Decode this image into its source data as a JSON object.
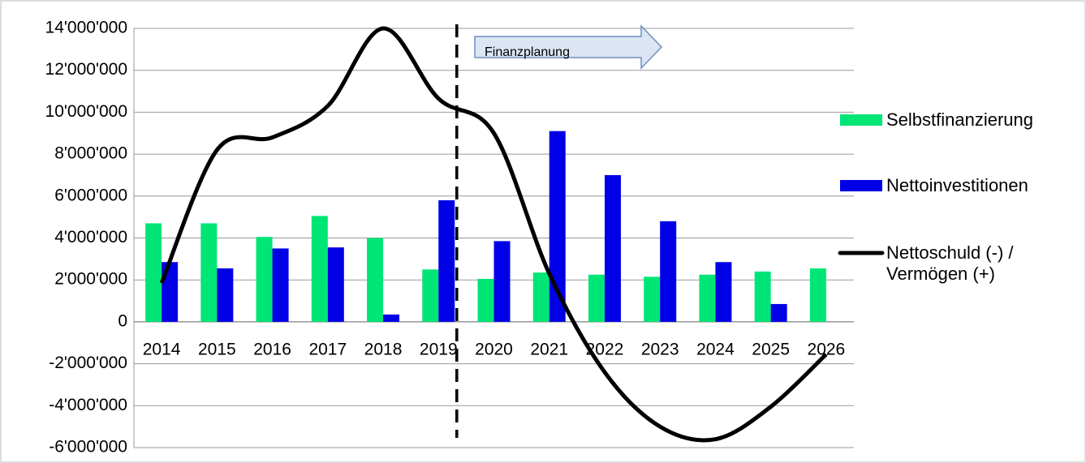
{
  "chart_data": {
    "type": "bar-line",
    "annotation": "Finanzplanung",
    "categories": [
      "2014",
      "2015",
      "2016",
      "2017",
      "2018",
      "2019",
      "2020",
      "2021",
      "2022",
      "2023",
      "2024",
      "2025",
      "2026"
    ],
    "series": [
      {
        "name": "Selbstfinanzierung",
        "type": "bar",
        "color": "#00e676",
        "values": [
          4700000,
          4700000,
          4050000,
          5050000,
          4000000,
          2500000,
          2050000,
          2350000,
          2250000,
          2150000,
          2250000,
          2400000,
          2550000
        ]
      },
      {
        "name": "Nettoinvestitionen",
        "type": "bar",
        "color": "#0000e6",
        "values": [
          2850000,
          2550000,
          3500000,
          3550000,
          350000,
          5800000,
          3850000,
          9100000,
          7000000,
          4800000,
          2850000,
          850000,
          null
        ]
      },
      {
        "name": "Nettoschuld (-) / Vermögen (+)",
        "type": "line",
        "color": "#000000",
        "values": [
          1850000,
          8200000,
          8800000,
          10300000,
          14000000,
          10650000,
          9000000,
          2300000,
          -2400000,
          -5000000,
          -5600000,
          -4050000,
          -1550000
        ]
      }
    ],
    "ylim": [
      -6000000,
      14000000
    ],
    "yticks": [
      {
        "value": -6000000,
        "label": "-6'000'000"
      },
      {
        "value": -4000000,
        "label": "-4'000'000"
      },
      {
        "value": -2000000,
        "label": "-2'000'000"
      },
      0,
      {
        "value": 2000000,
        "label": "2'000'000"
      },
      {
        "value": 4000000,
        "label": "4'000'000"
      },
      {
        "value": 6000000,
        "label": "6'000'000"
      },
      {
        "value": 8000000,
        "label": "8'000'000"
      },
      {
        "value": 10000000,
        "label": "10'000'000"
      },
      {
        "value": 12000000,
        "label": "12'000'000"
      },
      {
        "value": 14000000,
        "label": "14'000'000"
      }
    ],
    "grid": true
  }
}
